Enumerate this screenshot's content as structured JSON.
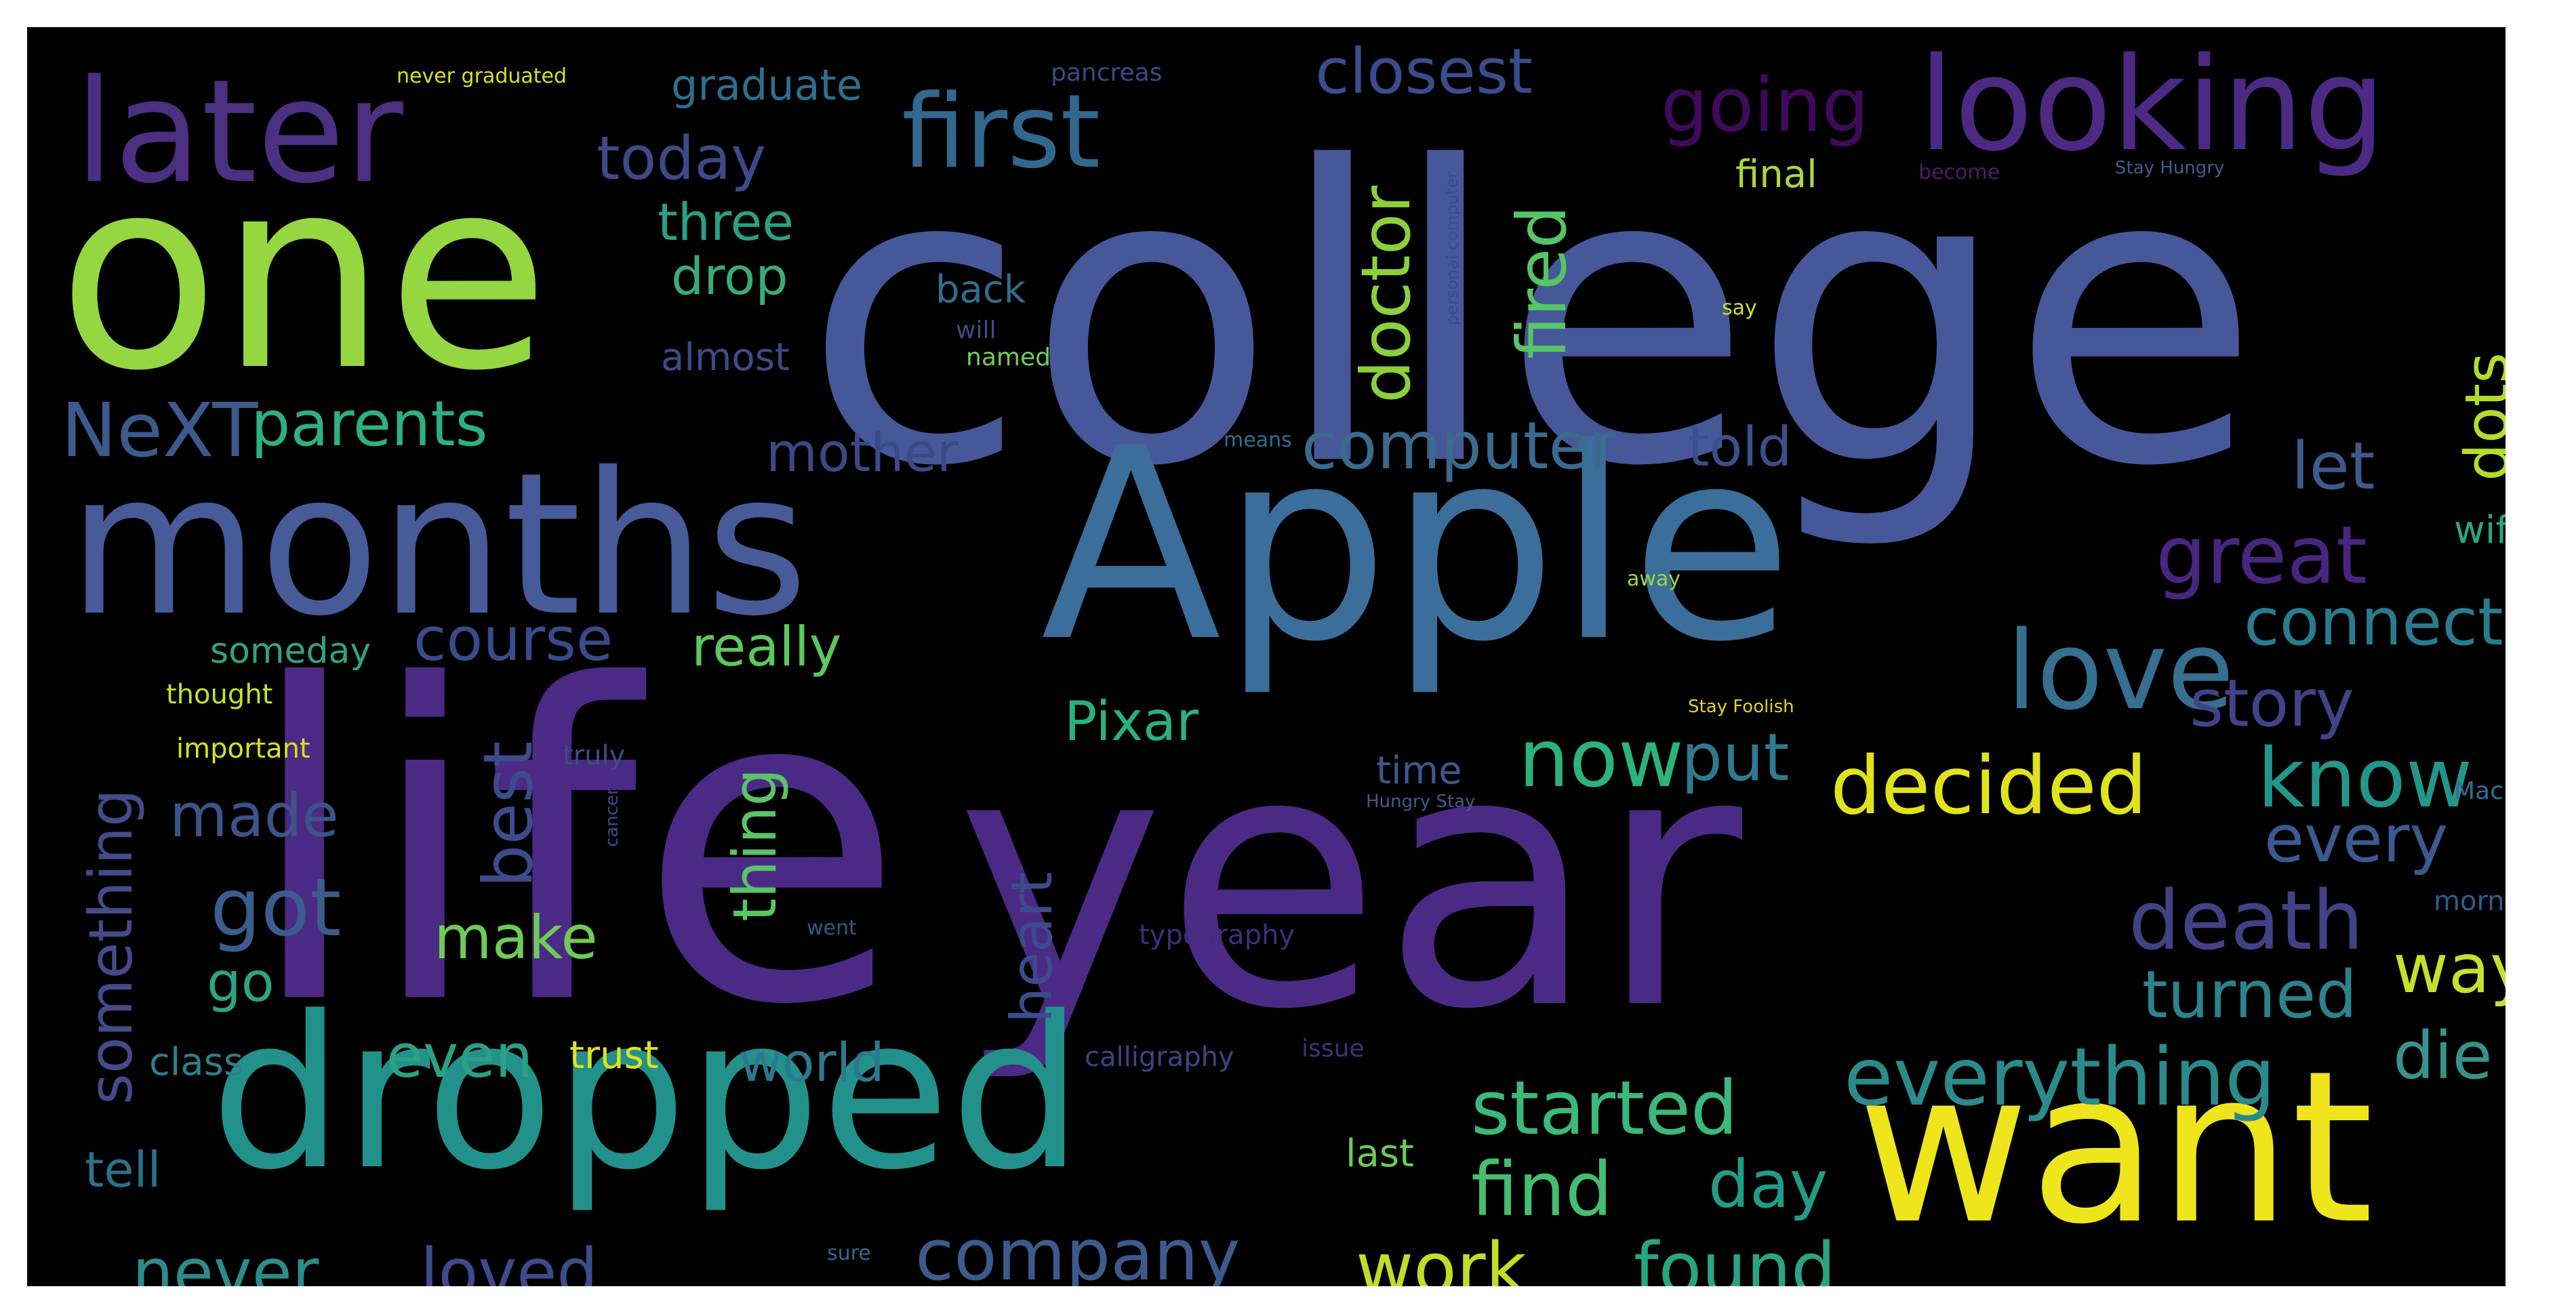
{
  "words": [
    {
      "text": "college",
      "color": "#46589a"
    },
    {
      "text": "life",
      "color": "#4b2a85"
    },
    {
      "text": "year",
      "color": "#4b2a85"
    },
    {
      "text": "Apple",
      "color": "#3b6e9a"
    },
    {
      "text": "one",
      "color": "#94d741"
    },
    {
      "text": "months",
      "color": "#465b97"
    },
    {
      "text": "dropped",
      "color": "#23918b"
    },
    {
      "text": "want",
      "color": "#efe51d"
    },
    {
      "text": "later",
      "color": "#4b2f81"
    },
    {
      "text": "looking",
      "color": "#4c2a83"
    },
    {
      "text": "first",
      "color": "#32678e"
    },
    {
      "text": "love",
      "color": "#366f8f"
    },
    {
      "text": "going",
      "color": "#3f0a5c"
    },
    {
      "text": "closest",
      "color": "#3b4c8c"
    },
    {
      "text": "today",
      "color": "#3c4a89"
    },
    {
      "text": "graduate",
      "color": "#2d6f8e"
    },
    {
      "text": "three",
      "color": "#2aa084"
    },
    {
      "text": "drop",
      "color": "#39ab7b"
    },
    {
      "text": "doctor",
      "color": "#8cd03c"
    },
    {
      "text": "fired",
      "color": "#56c566"
    },
    {
      "text": "NeXT",
      "color": "#3d5a8d"
    },
    {
      "text": "parents",
      "color": "#2db082"
    },
    {
      "text": "computer",
      "color": "#3a6a8e"
    },
    {
      "text": "told",
      "color": "#3a4f8b"
    },
    {
      "text": "mother",
      "color": "#3b4987"
    },
    {
      "text": "let",
      "color": "#3d5a8d"
    },
    {
      "text": "dots",
      "color": "#b3dc2b"
    },
    {
      "text": "great",
      "color": "#482680"
    },
    {
      "text": "connect",
      "color": "#2b7b8e"
    },
    {
      "text": "course",
      "color": "#3a4b8b"
    },
    {
      "text": "really",
      "color": "#5cc75d"
    },
    {
      "text": "someday",
      "color": "#2ea583"
    },
    {
      "text": "story",
      "color": "#414388"
    },
    {
      "text": "know",
      "color": "#23968a"
    },
    {
      "text": "Pixar",
      "color": "#2ab07f"
    },
    {
      "text": "now",
      "color": "#2bb27f"
    },
    {
      "text": "put",
      "color": "#30798e"
    },
    {
      "text": "decided",
      "color": "#e1e31a"
    },
    {
      "text": "every",
      "color": "#3a5a90"
    },
    {
      "text": "something",
      "color": "#434b8a"
    },
    {
      "text": "made",
      "color": "#3c5487"
    },
    {
      "text": "best",
      "color": "#3b4c8d"
    },
    {
      "text": "thing",
      "color": "#58c566"
    },
    {
      "text": "got",
      "color": "#3a5d8e"
    },
    {
      "text": "go",
      "color": "#2da483"
    },
    {
      "text": "make",
      "color": "#6ecc54"
    },
    {
      "text": "heart",
      "color": "#3b4c8d"
    },
    {
      "text": "death",
      "color": "#414186"
    },
    {
      "text": "turned",
      "color": "#2b838c"
    },
    {
      "text": "way",
      "color": "#c7e02b"
    },
    {
      "text": "die",
      "color": "#36938b"
    },
    {
      "text": "everything",
      "color": "#2b8b8c"
    },
    {
      "text": "started",
      "color": "#3bb97a"
    },
    {
      "text": "even",
      "color": "#2aa185"
    },
    {
      "text": "trust",
      "color": "#e0e21a"
    },
    {
      "text": "world",
      "color": "#2c798e"
    },
    {
      "text": "find",
      "color": "#44be70"
    },
    {
      "text": "day",
      "color": "#229c87"
    },
    {
      "text": "tell",
      "color": "#2c6f8e"
    },
    {
      "text": "never",
      "color": "#2a8c8b"
    },
    {
      "text": "loved",
      "color": "#3d4b8c"
    },
    {
      "text": "company",
      "color": "#3c5a8e"
    },
    {
      "text": "work",
      "color": "#c0dd28"
    },
    {
      "text": "found",
      "color": "#2aa584"
    },
    {
      "text": "class",
      "color": "#2f7d8d"
    },
    {
      "text": "final",
      "color": "#aad73a"
    },
    {
      "text": "back",
      "color": "#2e6f8d"
    },
    {
      "text": "almost",
      "color": "#3e4a87"
    },
    {
      "text": "will",
      "color": "#3f4a87"
    },
    {
      "text": "named",
      "color": "#6fd05a"
    },
    {
      "text": "time",
      "color": "#3a5a8e"
    },
    {
      "text": "last",
      "color": "#6dcb55"
    },
    {
      "text": "wife",
      "color": "#2aa583"
    },
    {
      "text": "morning",
      "color": "#2e5d8c"
    },
    {
      "text": "Mac",
      "color": "#2e6f8e"
    },
    {
      "text": "thought",
      "color": "#c5df30"
    },
    {
      "text": "important",
      "color": "#d7e21c"
    },
    {
      "text": "truly",
      "color": "#3e4b87"
    },
    {
      "text": "calligraphy",
      "color": "#3f4287"
    },
    {
      "text": "typography",
      "color": "#3f2e7e"
    },
    {
      "text": "issue",
      "color": "#3f2f7e"
    },
    {
      "text": "went",
      "color": "#2a5c8a"
    },
    {
      "text": "sure",
      "color": "#2f6a8e"
    },
    {
      "text": "away",
      "color": "#9fd83a"
    },
    {
      "text": "means",
      "color": "#2e6f8e"
    },
    {
      "text": "say",
      "color": "#cfe12a"
    },
    {
      "text": "never graduated",
      "color": "#d8e01d"
    },
    {
      "text": "pancreas",
      "color": "#3f4888"
    },
    {
      "text": "become",
      "color": "#4e1a68"
    },
    {
      "text": "Stay Hungry",
      "color": "#3d5f8c"
    },
    {
      "text": "personal computer",
      "color": "#3f4888"
    },
    {
      "text": "Stay Foolish",
      "color": "#e2d51b"
    },
    {
      "text": "Hungry Stay",
      "color": "#3f5b8c"
    },
    {
      "text": "cancer",
      "color": "#3f4888"
    }
  ]
}
